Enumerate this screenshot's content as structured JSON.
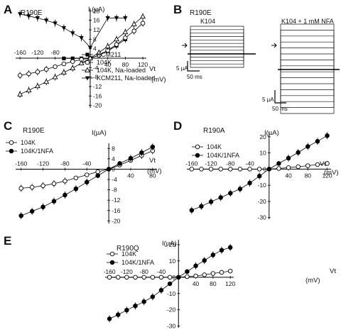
{
  "panels": [
    {
      "letter": "A",
      "construct": "R190E"
    },
    {
      "letter": "B",
      "construct": "R190E"
    },
    {
      "letter": "C",
      "construct": "R190E"
    },
    {
      "letter": "D",
      "construct": "R190A"
    },
    {
      "letter": "E",
      "construct": "R190Q"
    }
  ],
  "chart_data": [
    {
      "id": "A",
      "type": "line",
      "title": "R190E",
      "ylabel": "I (µA)",
      "xlabel": "Vt",
      "xunit": "(mV)",
      "xlim": [
        -170,
        128
      ],
      "ylim": [
        -21,
        21
      ],
      "x_ticks": [
        -160,
        -120,
        -80,
        40,
        80,
        120
      ],
      "y_ticks": [
        20,
        16,
        12,
        8,
        4,
        -4,
        -8,
        -12,
        -16,
        -20
      ],
      "y_tick_labels": [
        "20",
        "16",
        "12",
        "8",
        "4",
        "-4",
        "-8",
        "-12",
        "-16",
        "-20"
      ],
      "x": [
        -160,
        -140,
        -120,
        -100,
        -80,
        -60,
        -40,
        -20,
        0,
        20,
        40,
        60,
        80,
        100,
        120
      ],
      "series": [
        {
          "name": "KCM211",
          "marker": "square-filled",
          "y": [
            null,
            null,
            null,
            null,
            null,
            -0.1,
            -0.1,
            -0.1,
            0,
            1.3,
            3.0,
            5.3,
            8.0,
            null,
            null
          ]
        },
        {
          "name": "104K",
          "marker": "circle-open",
          "y": [
            -7.3,
            -6.6,
            -5.8,
            -4.7,
            -3.6,
            -2.4,
            -1.4,
            -0.6,
            0,
            1.2,
            3.3,
            5.8,
            8.6,
            11.5,
            14.8
          ]
        },
        {
          "name": "104K, Naᵢ-loaded",
          "marker": "triangle-open",
          "y": [
            -15.3,
            -13.6,
            -11.8,
            -10.0,
            -8.0,
            -6.0,
            -4.2,
            -2.1,
            0,
            2.4,
            5.0,
            8.0,
            11.0,
            14.4,
            17.6
          ]
        },
        {
          "name": "KCM211, Naᵢ-loaded",
          "marker": "triangle-down-filled",
          "y": [
            18.7,
            17.8,
            17.0,
            16.0,
            14.8,
            12.8,
            10.6,
            8.6,
            4.5,
            null,
            17.0,
            17.0,
            17.0,
            null,
            null
          ]
        }
      ],
      "legend_position": "lower-right"
    },
    {
      "id": "B",
      "type": "traces",
      "traces": [
        {
          "label": "K104",
          "sweeps": 13
        },
        {
          "label": "K104 + 1 mM NFA",
          "sweeps": 16
        }
      ],
      "scale_bar_current": "5 µA",
      "scale_bar_time": "50 ms"
    },
    {
      "id": "C",
      "type": "line",
      "title": "R190E",
      "ylabel": "I(µA)",
      "xlabel": "Vt",
      "xunit": "(mV)",
      "xlim": [
        -170,
        88
      ],
      "ylim": [
        -21,
        10
      ],
      "x_ticks": [
        -160,
        -120,
        -80,
        -40,
        40,
        80
      ],
      "y_ticks": [
        8,
        4,
        0,
        -4,
        -8,
        -12,
        -16,
        -20
      ],
      "y_tick_labels": [
        "8",
        "4",
        "0",
        "-4",
        "-8",
        "-12",
        "-16",
        "-20"
      ],
      "x": [
        -160,
        -140,
        -120,
        -100,
        -80,
        -60,
        -40,
        -20,
        0,
        20,
        40,
        60,
        80
      ],
      "series": [
        {
          "name": "104K",
          "marker": "circle-open",
          "y": [
            -7.4,
            -7.0,
            -6.4,
            -5.6,
            -4.6,
            -3.4,
            -2.2,
            -1.0,
            0,
            1.6,
            3.4,
            5.3,
            7.1
          ]
        },
        {
          "name": "104K/1NFA",
          "marker": "circle-filled",
          "y": [
            -18.0,
            -16.3,
            -14.6,
            -12.4,
            -10.0,
            -7.6,
            -5.0,
            -2.5,
            0,
            2.2,
            4.2,
            6.4,
            8.6
          ]
        }
      ],
      "legend_position": "upper-left"
    },
    {
      "id": "D",
      "type": "line",
      "title": "R190A",
      "ylabel": "I(µA)",
      "xlabel": "Vt",
      "xunit": "(mV)",
      "xlim": [
        -170,
        128
      ],
      "ylim": [
        -31,
        23
      ],
      "x_ticks": [
        -160,
        -120,
        -80,
        -40,
        40,
        80,
        120
      ],
      "y_ticks": [
        20,
        10,
        0,
        -10,
        -20,
        -30
      ],
      "y_tick_labels": [
        "20",
        "10",
        "0",
        "-10",
        "-20",
        "-30"
      ],
      "x": [
        -160,
        -140,
        -120,
        -100,
        -80,
        -60,
        -40,
        -20,
        0,
        20,
        40,
        60,
        80,
        100,
        120
      ],
      "series": [
        {
          "name": "104K",
          "marker": "circle-open",
          "y": [
            0,
            0,
            0,
            0,
            0,
            0,
            0,
            0,
            0,
            0.4,
            0.9,
            1.5,
            2.1,
            2.8,
            3.5
          ]
        },
        {
          "name": "104K/1NFA",
          "marker": "circle-filled",
          "y": [
            -25.5,
            -23.0,
            -20.2,
            -17.6,
            -14.9,
            -12.3,
            -8.6,
            -4.3,
            0,
            3.5,
            6.8,
            10.3,
            14.0,
            17.2,
            20.7
          ]
        }
      ],
      "legend_position": "upper-left"
    },
    {
      "id": "E",
      "type": "line",
      "title": "R190Q",
      "ylabel": "I(µA)",
      "xlabel": "Vt",
      "xunit": "(mV)",
      "xlim": [
        -170,
        128
      ],
      "ylim": [
        -31,
        23
      ],
      "x_ticks": [
        -160,
        -120,
        -80,
        -40,
        40,
        80,
        120
      ],
      "y_ticks": [
        20,
        10,
        0,
        -10,
        -20,
        -30
      ],
      "y_tick_labels": [
        "20",
        "10",
        "0",
        "-10",
        "-20",
        "-30"
      ],
      "x": [
        -160,
        -140,
        -120,
        -100,
        -80,
        -60,
        -40,
        -20,
        0,
        20,
        40,
        60,
        80,
        100,
        120
      ],
      "series": [
        {
          "name": "104K",
          "marker": "circle-open",
          "y": [
            0,
            0,
            0,
            0,
            0,
            0,
            0,
            0,
            0,
            0.4,
            0.8,
            1.5,
            2.3,
            3.0,
            3.8
          ]
        },
        {
          "name": "104K/1NFA",
          "marker": "circle-filled",
          "y": [
            -25.5,
            -23.0,
            -20.2,
            -17.6,
            -15.0,
            -12.0,
            -8.0,
            -4.0,
            0,
            3.5,
            7.0,
            10.3,
            13.7,
            16.6,
            18.3
          ]
        }
      ],
      "legend_position": "upper-left"
    }
  ]
}
